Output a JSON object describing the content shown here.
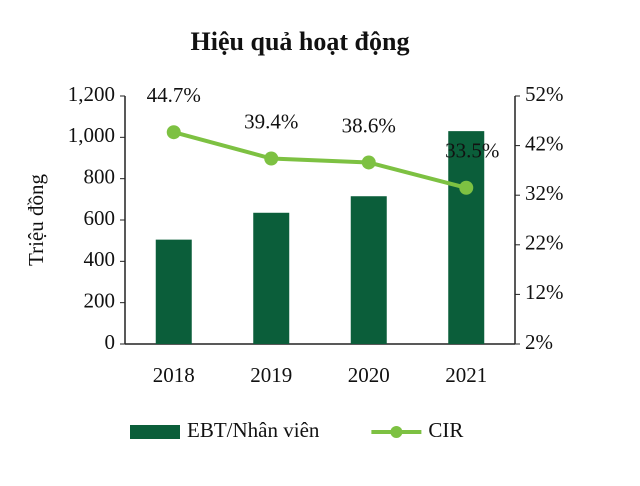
{
  "chart_data": {
    "type": "combo",
    "title": "Hiệu quả hoạt động",
    "y_label": "Triệu đồng",
    "categories": [
      "2018",
      "2019",
      "2020",
      "2021"
    ],
    "series": [
      {
        "name": "EBT/Nhân viên",
        "type": "bar",
        "color": "#0b5e3a",
        "values": [
          505,
          635,
          715,
          1030
        ]
      },
      {
        "name": "CIR",
        "type": "line",
        "axis": "y2",
        "color": "#7dc142",
        "values": [
          44.7,
          39.4,
          38.6,
          33.5
        ],
        "value_labels": [
          "44.7%",
          "39.4%",
          "38.6%",
          "33.5%"
        ]
      }
    ],
    "ylim": [
      0,
      1200
    ],
    "yticks": [
      0,
      200,
      400,
      600,
      800,
      {
        "value": 1000,
        "label": "1,000"
      },
      {
        "value": 1200,
        "label": "1,200"
      }
    ],
    "y2lim": [
      2,
      52
    ],
    "y2ticks": [
      {
        "value": 2,
        "label": "2%"
      },
      {
        "value": 12,
        "label": "12%"
      },
      {
        "value": 22,
        "label": "22%"
      },
      {
        "value": 32,
        "label": "32%"
      },
      {
        "value": 42,
        "label": "42%"
      },
      {
        "value": 52,
        "label": "52%"
      }
    ],
    "grid": false,
    "legend": "bottom"
  }
}
